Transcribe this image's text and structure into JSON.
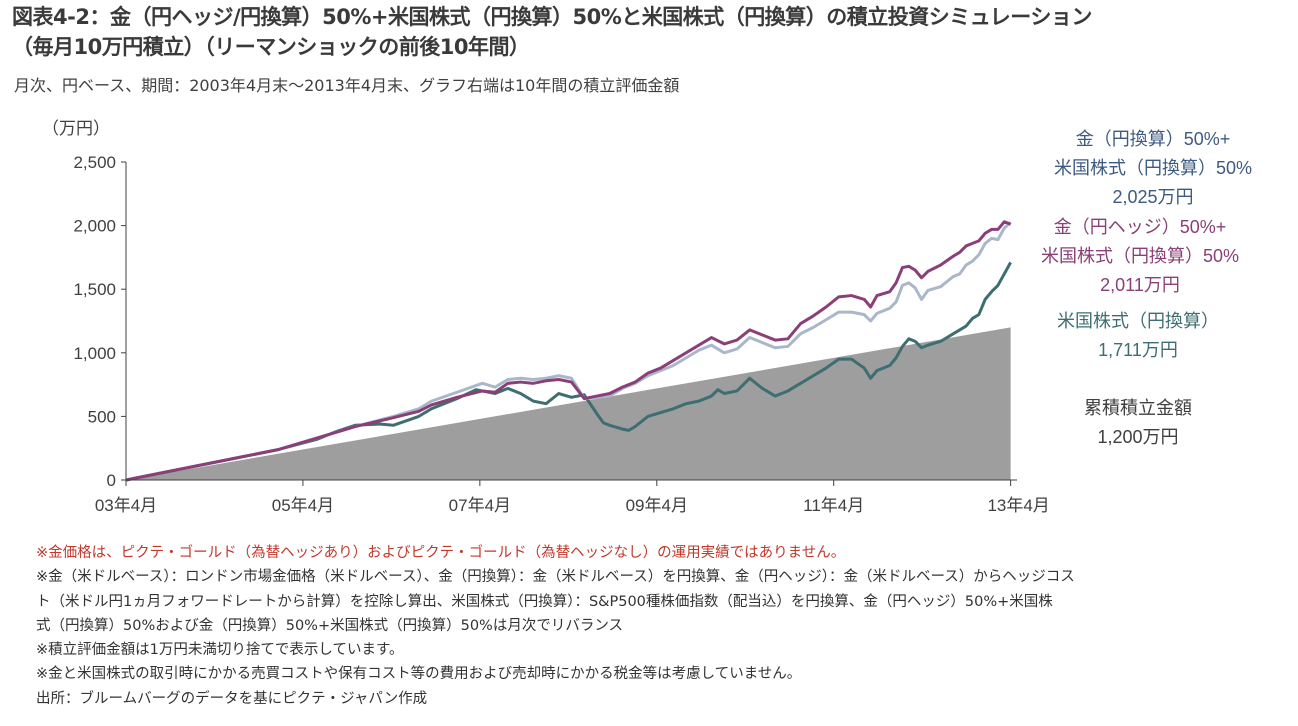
{
  "title": {
    "line1": "図表4-2：金（円ヘッジ/円換算）50%+米国株式（円換算）50%と米国株式（円換算）の積立投資シミュレーション",
    "line2": "（毎月10万円積立）（リーマンショックの前後10年間）"
  },
  "subtitle": "月次、円ベース、期間：2003年4月末～2013年4月末、グラフ右端は10年間の積立評価金額",
  "chart_data": {
    "type": "line",
    "y_unit_label": "（万円）",
    "ylim": [
      0,
      2500
    ],
    "y_ticks": [
      "0",
      "500",
      "1,000",
      "1,500",
      "2,000",
      "2,500"
    ],
    "x_ticks": [
      "03年4月",
      "05年4月",
      "07年4月",
      "09年4月",
      "11年4月",
      "13年4月"
    ],
    "x_domain_months": [
      0,
      120
    ],
    "x_tick_months": [
      0,
      24,
      48,
      72,
      96,
      120
    ],
    "series": [
      {
        "name": "累積積立金額",
        "kind": "area",
        "color": "#9e9e9e",
        "points": [
          [
            0,
            0
          ],
          [
            120,
            1200
          ]
        ]
      },
      {
        "name": "米国株式（円換算）",
        "color": "#3d6e72",
        "points": [
          [
            0,
            0
          ],
          [
            6,
            60
          ],
          [
            12,
            120
          ],
          [
            18,
            180
          ],
          [
            24,
            240
          ],
          [
            30,
            320
          ],
          [
            33,
            380
          ],
          [
            36,
            430
          ],
          [
            40,
            440
          ],
          [
            42,
            430
          ],
          [
            46,
            500
          ],
          [
            48,
            560
          ],
          [
            52,
            640
          ],
          [
            55,
            710
          ],
          [
            58,
            680
          ],
          [
            60,
            720
          ],
          [
            62,
            680
          ],
          [
            64,
            620
          ],
          [
            66,
            600
          ],
          [
            68,
            680
          ],
          [
            70,
            650
          ],
          [
            72,
            670
          ],
          [
            74,
            520
          ],
          [
            75,
            450
          ],
          [
            76,
            430
          ],
          [
            78,
            400
          ],
          [
            79,
            390
          ],
          [
            80,
            420
          ],
          [
            82,
            500
          ],
          [
            84,
            530
          ],
          [
            86,
            560
          ],
          [
            88,
            600
          ],
          [
            90,
            620
          ],
          [
            92,
            660
          ],
          [
            93,
            710
          ],
          [
            94,
            680
          ],
          [
            96,
            700
          ],
          [
            98,
            800
          ],
          [
            100,
            720
          ],
          [
            102,
            660
          ],
          [
            104,
            700
          ],
          [
            106,
            760
          ],
          [
            108,
            820
          ],
          [
            110,
            880
          ],
          [
            112,
            950
          ],
          [
            114,
            950
          ],
          [
            116,
            880
          ],
          [
            117,
            800
          ],
          [
            118,
            860
          ],
          [
            120,
            900
          ],
          [
            121,
            960
          ],
          [
            122,
            1050
          ],
          [
            123,
            1110
          ],
          [
            124,
            1090
          ],
          [
            125,
            1040
          ],
          [
            126,
            1060
          ],
          [
            128,
            1090
          ],
          [
            130,
            1150
          ],
          [
            131,
            1180
          ],
          [
            132,
            1210
          ],
          [
            133,
            1270
          ],
          [
            134,
            1300
          ],
          [
            135,
            1420
          ],
          [
            136,
            1480
          ],
          [
            137,
            1530
          ],
          [
            138,
            1620
          ],
          [
            139,
            1711
          ]
        ]
      },
      {
        "name": "金（円換算）50%+米国株式（円換算）50%",
        "color": "#a9b7c9",
        "points": [
          [
            0,
            0
          ],
          [
            6,
            60
          ],
          [
            12,
            120
          ],
          [
            18,
            180
          ],
          [
            24,
            240
          ],
          [
            30,
            330
          ],
          [
            36,
            420
          ],
          [
            42,
            500
          ],
          [
            46,
            560
          ],
          [
            48,
            620
          ],
          [
            52,
            690
          ],
          [
            56,
            760
          ],
          [
            58,
            730
          ],
          [
            60,
            790
          ],
          [
            62,
            800
          ],
          [
            64,
            790
          ],
          [
            66,
            800
          ],
          [
            68,
            820
          ],
          [
            70,
            800
          ],
          [
            72,
            640
          ],
          [
            74,
            650
          ],
          [
            76,
            660
          ],
          [
            78,
            720
          ],
          [
            80,
            760
          ],
          [
            82,
            820
          ],
          [
            84,
            860
          ],
          [
            86,
            900
          ],
          [
            88,
            960
          ],
          [
            90,
            1020
          ],
          [
            92,
            1060
          ],
          [
            94,
            1000
          ],
          [
            96,
            1030
          ],
          [
            98,
            1120
          ],
          [
            100,
            1080
          ],
          [
            102,
            1040
          ],
          [
            104,
            1050
          ],
          [
            106,
            1150
          ],
          [
            108,
            1200
          ],
          [
            110,
            1260
          ],
          [
            112,
            1320
          ],
          [
            114,
            1320
          ],
          [
            116,
            1300
          ],
          [
            117,
            1250
          ],
          [
            118,
            1310
          ],
          [
            120,
            1350
          ],
          [
            121,
            1400
          ],
          [
            122,
            1530
          ],
          [
            123,
            1550
          ],
          [
            124,
            1510
          ],
          [
            125,
            1420
          ],
          [
            126,
            1490
          ],
          [
            128,
            1520
          ],
          [
            130,
            1600
          ],
          [
            131,
            1620
          ],
          [
            132,
            1690
          ],
          [
            133,
            1720
          ],
          [
            134,
            1770
          ],
          [
            135,
            1860
          ],
          [
            136,
            1900
          ],
          [
            137,
            1890
          ],
          [
            138,
            1980
          ],
          [
            139,
            2025
          ]
        ]
      },
      {
        "name": "金（円ヘッジ）50%+米国株式（円換算）50%",
        "color": "#8a3f78",
        "points": [
          [
            0,
            0
          ],
          [
            6,
            60
          ],
          [
            12,
            120
          ],
          [
            18,
            180
          ],
          [
            24,
            240
          ],
          [
            30,
            330
          ],
          [
            36,
            420
          ],
          [
            42,
            490
          ],
          [
            46,
            540
          ],
          [
            48,
            590
          ],
          [
            52,
            650
          ],
          [
            56,
            700
          ],
          [
            58,
            690
          ],
          [
            60,
            760
          ],
          [
            62,
            770
          ],
          [
            64,
            760
          ],
          [
            66,
            780
          ],
          [
            68,
            790
          ],
          [
            70,
            770
          ],
          [
            72,
            640
          ],
          [
            74,
            660
          ],
          [
            76,
            680
          ],
          [
            78,
            730
          ],
          [
            80,
            770
          ],
          [
            82,
            840
          ],
          [
            84,
            880
          ],
          [
            86,
            940
          ],
          [
            88,
            1000
          ],
          [
            90,
            1060
          ],
          [
            92,
            1120
          ],
          [
            94,
            1070
          ],
          [
            96,
            1100
          ],
          [
            98,
            1180
          ],
          [
            100,
            1140
          ],
          [
            102,
            1100
          ],
          [
            104,
            1110
          ],
          [
            106,
            1230
          ],
          [
            108,
            1290
          ],
          [
            110,
            1360
          ],
          [
            112,
            1440
          ],
          [
            114,
            1450
          ],
          [
            116,
            1420
          ],
          [
            117,
            1360
          ],
          [
            118,
            1450
          ],
          [
            120,
            1480
          ],
          [
            121,
            1550
          ],
          [
            122,
            1670
          ],
          [
            123,
            1680
          ],
          [
            124,
            1650
          ],
          [
            125,
            1590
          ],
          [
            126,
            1640
          ],
          [
            128,
            1690
          ],
          [
            130,
            1760
          ],
          [
            131,
            1790
          ],
          [
            132,
            1840
          ],
          [
            133,
            1860
          ],
          [
            134,
            1880
          ],
          [
            135,
            1940
          ],
          [
            136,
            1970
          ],
          [
            137,
            1970
          ],
          [
            138,
            2030
          ],
          [
            139,
            2011
          ]
        ]
      }
    ],
    "labels": [
      {
        "lines": [
          "金（円換算）50%+",
          "米国株式（円換算）50%",
          "2,025万円"
        ],
        "color": "#3d5a80"
      },
      {
        "lines": [
          "金（円ヘッジ）50%+",
          "米国株式（円換算）50%",
          "2,011万円"
        ],
        "color": "#8a3f78"
      },
      {
        "lines": [
          "米国株式（円換算）",
          "1,711万円"
        ],
        "color": "#3d6e72"
      },
      {
        "lines": [
          "累積積立金額",
          "1,200万円"
        ],
        "color": "#404040"
      }
    ]
  },
  "notes": {
    "line1": "※金価格は、ピクテ・ゴールド（為替ヘッジあり）およびピクテ・ゴールド（為替ヘッジなし）の運用実績ではありません。",
    "line2": "※金（米ドルベース）：ロンドン市場金価格（米ドルベース）、金（円換算）：金（米ドルベース）を円換算、金（円ヘッジ）：金（米ドルベース）からヘッジコス",
    "line3": "ト（米ドル円1ヵ月フォワードレートから計算）を控除し算出、米国株式（円換算）：S&P500種株価指数（配当込）を円換算、金（円ヘッジ）50%+米国株",
    "line4": "式（円換算）50%および金（円換算）50%+米国株式（円換算）50%は月次でリバランス",
    "line5": "※積立評価金額は1万円未満切り捨てで表示しています。",
    "line6": "※金と米国株式の取引時にかかる売買コストや保有コスト等の費用および売却時にかかる税金等は考慮していません。",
    "line7": "出所：ブルームバーグのデータを基にピクテ・ジャパン作成"
  }
}
